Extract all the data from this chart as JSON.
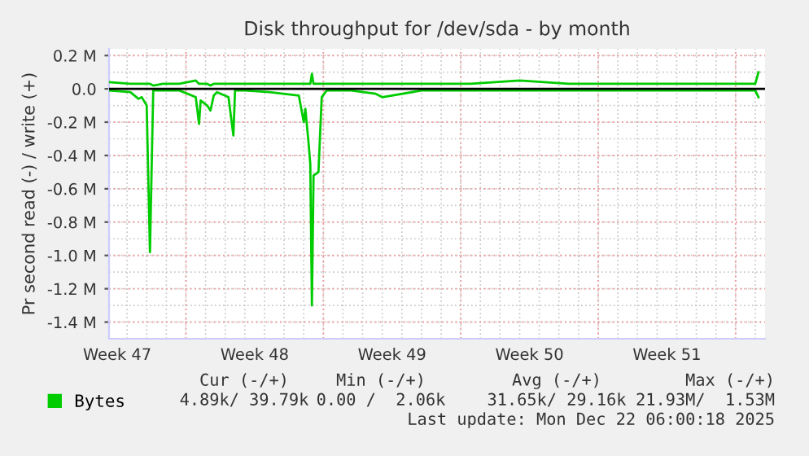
{
  "chart_data": {
    "type": "line",
    "title": "Disk throughput for /dev/sda - by month",
    "ylabel": "Pr second read (-) / write (+)",
    "x": [
      "2025-11-20T02:00",
      "2025-11-21T04:00",
      "2025-11-21T14:00",
      "2025-11-21T18:00",
      "2025-11-22T00:00",
      "2025-11-22T04:00",
      "2025-11-22T08:00",
      "2025-11-22T20:00",
      "2025-11-23T16:00",
      "2025-11-24T12:00",
      "2025-11-24T16:00",
      "2025-11-24T18:00",
      "2025-11-25T02:00",
      "2025-11-25T06:00",
      "2025-11-25T10:00",
      "2025-11-25T14:00",
      "2025-11-26T04:00",
      "2025-11-26T10:00",
      "2025-11-26T12:00",
      "2025-11-27T00:00",
      "2025-11-28T06:00",
      "2025-11-29T18:00",
      "2025-11-30T00:00",
      "2025-11-30T02:00",
      "2025-11-30T06:00",
      "2025-11-30T08:00",
      "2025-11-30T10:00",
      "2025-11-30T12:00",
      "2025-11-30T18:00",
      "2025-11-30T22:00",
      "2025-12-01T04:00",
      "2025-12-02T10:00",
      "2025-12-03T16:00",
      "2025-12-04T00:00",
      "2025-12-06T00:00",
      "2025-12-08T12:00",
      "2025-12-11T00:00",
      "2025-12-13T12:00",
      "2025-12-16T00:00",
      "2025-12-18T12:00",
      "2025-12-21T00:00",
      "2025-12-23T00:00",
      "2025-12-23T04:00"
    ],
    "series": [
      {
        "name": "Bytes",
        "color": "#00cc00",
        "values": [
          0.04,
          0.03,
          0.03,
          0.03,
          0.03,
          0.03,
          0.02,
          0.03,
          0.03,
          0.05,
          0.03,
          0.03,
          0.03,
          0.02,
          0.03,
          0.03,
          0.03,
          0.03,
          0.03,
          0.03,
          0.03,
          0.03,
          0.03,
          0.03,
          0.03,
          0.03,
          0.09,
          0.03,
          0.03,
          0.03,
          0.03,
          0.03,
          0.03,
          0.03,
          0.03,
          0.03,
          0.05,
          0.03,
          0.03,
          0.03,
          0.03,
          0.03,
          0.1
        ]
      },
      {
        "color": "#00cc00",
        "values": [
          -0.01,
          -0.02,
          -0.06,
          -0.05,
          -0.1,
          -0.98,
          -0.01,
          -0.01,
          -0.01,
          -0.05,
          -0.21,
          -0.07,
          -0.1,
          -0.13,
          -0.04,
          -0.02,
          -0.05,
          -0.28,
          -0.01,
          -0.01,
          -0.02,
          -0.04,
          -0.2,
          -0.12,
          -0.33,
          -0.45,
          -1.3,
          -0.52,
          -0.5,
          -0.05,
          -0.01,
          -0.01,
          -0.03,
          -0.05,
          -0.01,
          -0.01,
          -0.01,
          -0.01,
          -0.01,
          -0.01,
          -0.01,
          -0.01,
          -0.05
        ]
      }
    ],
    "xlim": [
      "2025-11-20T02:00",
      "2025-12-23T12:00"
    ],
    "xticks": [
      {
        "value": "2025-11-20T12:00",
        "label": "Week 47"
      },
      {
        "value": "2025-11-24T00:00",
        "label": null
      },
      {
        "value": "2025-11-27T12:00",
        "label": "Week 48"
      },
      {
        "value": "2025-12-01T00:00",
        "label": null
      },
      {
        "value": "2025-12-04T12:00",
        "label": "Week 49"
      },
      {
        "value": "2025-12-08T00:00",
        "label": null
      },
      {
        "value": "2025-12-11T12:00",
        "label": "Week 50"
      },
      {
        "value": "2025-12-15T00:00",
        "label": null
      },
      {
        "value": "2025-12-18T12:00",
        "label": "Week 51"
      },
      {
        "value": "2025-12-22T00:00",
        "label": null
      }
    ],
    "ylim": [
      -1.5,
      0.24
    ],
    "yticks": [
      {
        "value": 0.2,
        "label": "0.2 M"
      },
      {
        "value": 0.0,
        "label": "0.0"
      },
      {
        "value": -0.2,
        "label": "-0.2 M"
      },
      {
        "value": -0.4,
        "label": "-0.4 M"
      },
      {
        "value": -0.6,
        "label": "-0.6 M"
      },
      {
        "value": -0.8,
        "label": "-0.8 M"
      },
      {
        "value": -1.0,
        "label": "-1.0 M"
      },
      {
        "value": -1.2,
        "label": "-1.2 M"
      },
      {
        "value": -1.4,
        "label": "-1.4 M"
      }
    ],
    "ref_lines": [
      {
        "axis": "y",
        "value": 0,
        "color": "#000000"
      }
    ],
    "grid": true,
    "legend": "bottom left",
    "marker": "none",
    "line_style": "solid",
    "annotations": [
      "Cur (-/+)",
      "Min (-/+)",
      "Avg (-/+)",
      "Max (-/+)",
      "4.89k/ 39.79k",
      "0.00 /  2.06k",
      "31.65k/ 29.16k",
      "21.93M/  1.53M",
      "Last update: Mon Dec 22 06:00:18 2025"
    ]
  }
}
